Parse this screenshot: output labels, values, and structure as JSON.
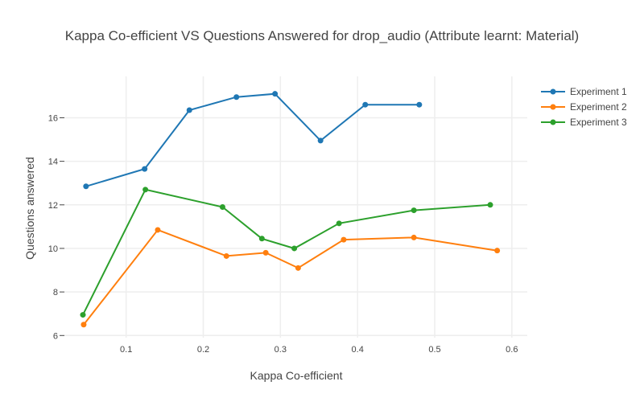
{
  "chart_data": {
    "type": "line",
    "title": "Kappa Co-efficient VS Questions Answered for drop_audio (Attribute learnt: Material)",
    "xlabel": "Kappa Co-efficient",
    "ylabel": "Questions answered",
    "xlim": [
      0.02,
      0.62
    ],
    "ylim": [
      5.9,
      17.9
    ],
    "xticks": [
      0.1,
      0.2,
      0.3,
      0.4,
      0.5,
      0.6
    ],
    "xtick_labels": [
      "0.1",
      "0.2",
      "0.3",
      "0.4",
      "0.5",
      "0.6"
    ],
    "yticks": [
      6,
      8,
      10,
      12,
      14,
      16
    ],
    "ytick_labels": [
      "6",
      "8",
      "10",
      "12",
      "14",
      "16"
    ],
    "grid": true,
    "legend_position": "top-right",
    "series": [
      {
        "name": "Experiment 1",
        "color": "#1f77b4",
        "x": [
          0.048,
          0.124,
          0.182,
          0.243,
          0.293,
          0.352,
          0.41,
          0.48
        ],
        "y": [
          12.85,
          13.65,
          16.35,
          16.95,
          17.1,
          14.95,
          16.6,
          16.6
        ]
      },
      {
        "name": "Experiment 2",
        "color": "#ff7f0e",
        "x": [
          0.045,
          0.141,
          0.23,
          0.281,
          0.323,
          0.382,
          0.473,
          0.581
        ],
        "y": [
          6.5,
          10.85,
          9.65,
          9.8,
          9.1,
          10.4,
          10.5,
          9.9
        ]
      },
      {
        "name": "Experiment 3",
        "color": "#2ca02c",
        "x": [
          0.044,
          0.125,
          0.225,
          0.276,
          0.318,
          0.376,
          0.473,
          0.572
        ],
        "y": [
          6.95,
          12.7,
          11.9,
          10.45,
          10.0,
          11.15,
          11.75,
          12.0
        ]
      }
    ]
  }
}
